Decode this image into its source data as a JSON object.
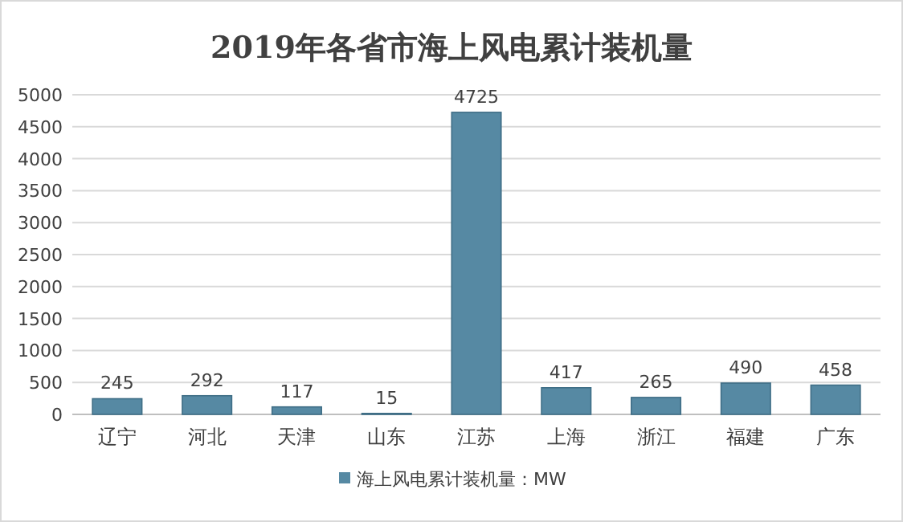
{
  "chart_data": {
    "type": "bar",
    "title": "2019年各省市海上风电累计装机量",
    "categories": [
      "辽宁",
      "河北",
      "天津",
      "山东",
      "江苏",
      "上海",
      "浙江",
      "福建",
      "广东"
    ],
    "series": [
      {
        "name": "海上风电累计装机量：MW",
        "color": "#5689a3",
        "values": [
          245,
          292,
          117,
          15,
          4725,
          417,
          265,
          490,
          458
        ]
      }
    ],
    "ylim": [
      0,
      5000
    ],
    "yticks": [
      0,
      500,
      1000,
      1500,
      2000,
      2500,
      3000,
      3500,
      4000,
      4500,
      5000
    ],
    "grid": "y",
    "legend": "bottom",
    "data_labels": true
  }
}
